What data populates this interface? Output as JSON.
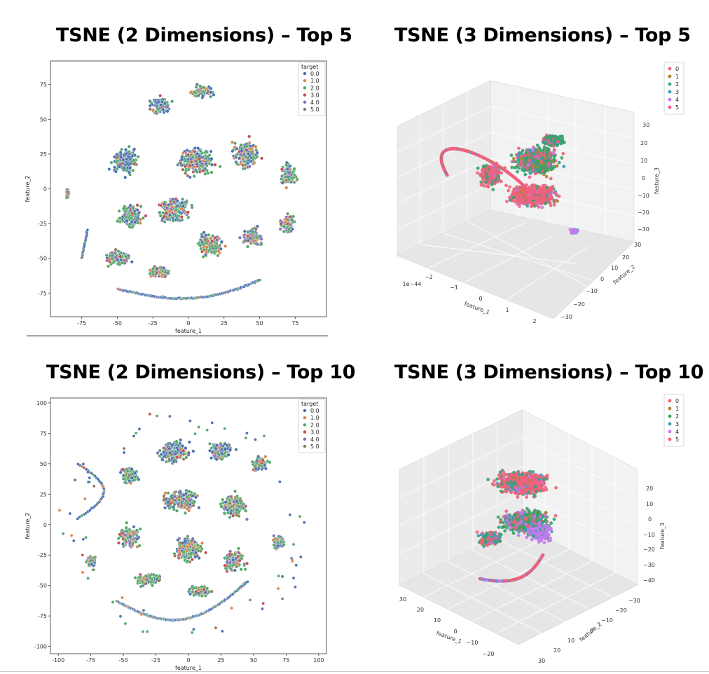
{
  "colors": {
    "c0": "#4c72b0",
    "c1": "#dd8452",
    "c2": "#55a868",
    "c3": "#c44e52",
    "c4": "#8172b3",
    "c5": "#937860",
    "h0": "#e8637a",
    "h1": "#a8882c",
    "h2": "#3aa16b",
    "h3": "#3a9fb5",
    "h4": "#c17af0",
    "h5": "#f0627e"
  },
  "chart_data": [
    {
      "type": "scatter",
      "title": "TSNE (2 Dimensions) – Top 5",
      "xlabel": "feature_1",
      "ylabel": "feature_2",
      "xlim": [
        -97,
        97
      ],
      "ylim": [
        -92,
        92
      ],
      "xticks": [
        "-75",
        "-50",
        "-25",
        "0",
        "25",
        "50",
        "75"
      ],
      "xtick_values": [
        -75,
        -50,
        -25,
        0,
        25,
        50,
        75
      ],
      "yticks": [
        "75",
        "50",
        "25",
        "0",
        "-25",
        "-50",
        "-75"
      ],
      "ytick_values": [
        75,
        50,
        25,
        0,
        -25,
        -50,
        -75
      ],
      "legend_title": "target",
      "legend_labels": [
        "0.0",
        "1.0",
        "2.0",
        "3.0",
        "4.0",
        "5.0"
      ],
      "legend_position": "top-right"
    },
    {
      "type": "scatter",
      "title": "TSNE (3 Dimensions) – Top 5",
      "xlabel": "feature_1",
      "ylabel": "feature_2",
      "zlabel": "feature_3",
      "offset_text": "1e−44",
      "xticks": [
        "−2",
        "−1",
        "0",
        "1",
        "2"
      ],
      "yticks": [
        "30",
        "20",
        "10",
        "0",
        "−10",
        "−20",
        "−30"
      ],
      "zticks": [
        "30",
        "20",
        "10",
        "0",
        "−10",
        "−20",
        "−30"
      ],
      "legend_labels": [
        "0",
        "1",
        "2",
        "3",
        "4",
        "5"
      ],
      "legend_position": "top-right"
    },
    {
      "type": "scatter",
      "title": "TSNE (2 Dimensions) – Top 10",
      "xlabel": "feature_1",
      "ylabel": "feature_2",
      "xlim": [
        -106,
        106
      ],
      "ylim": [
        -106,
        104
      ],
      "xticks": [
        "-100",
        "-75",
        "-50",
        "-25",
        "0",
        "25",
        "50",
        "75",
        "100"
      ],
      "xtick_values": [
        -100,
        -75,
        -50,
        -25,
        0,
        25,
        50,
        75,
        100
      ],
      "yticks": [
        "100",
        "75",
        "50",
        "25",
        "0",
        "-25",
        "-50",
        "-75",
        "-100"
      ],
      "ytick_values": [
        100,
        75,
        50,
        25,
        0,
        -25,
        -50,
        -75,
        -100
      ],
      "legend_title": "target",
      "legend_labels": [
        "0.0",
        "1.0",
        "2.0",
        "3.0",
        "4.0",
        "5.0"
      ],
      "legend_position": "top-right"
    },
    {
      "type": "scatter",
      "title": "TSNE (3 Dimensions) – Top 10",
      "xlabel": "feature_1",
      "ylabel": "feature_2",
      "zlabel": "feature_3",
      "xticks": [
        "30",
        "20",
        "10",
        "0",
        "−10",
        "−20"
      ],
      "yticks": [
        "−30",
        "−20",
        "−10",
        "0",
        "10",
        "20",
        "30"
      ],
      "zticks": [
        "20",
        "10",
        "0",
        "−10",
        "−20",
        "−30",
        "−40"
      ],
      "legend_labels": [
        "0",
        "1",
        "2",
        "3",
        "4",
        "5"
      ],
      "legend_position": "top-right"
    }
  ]
}
